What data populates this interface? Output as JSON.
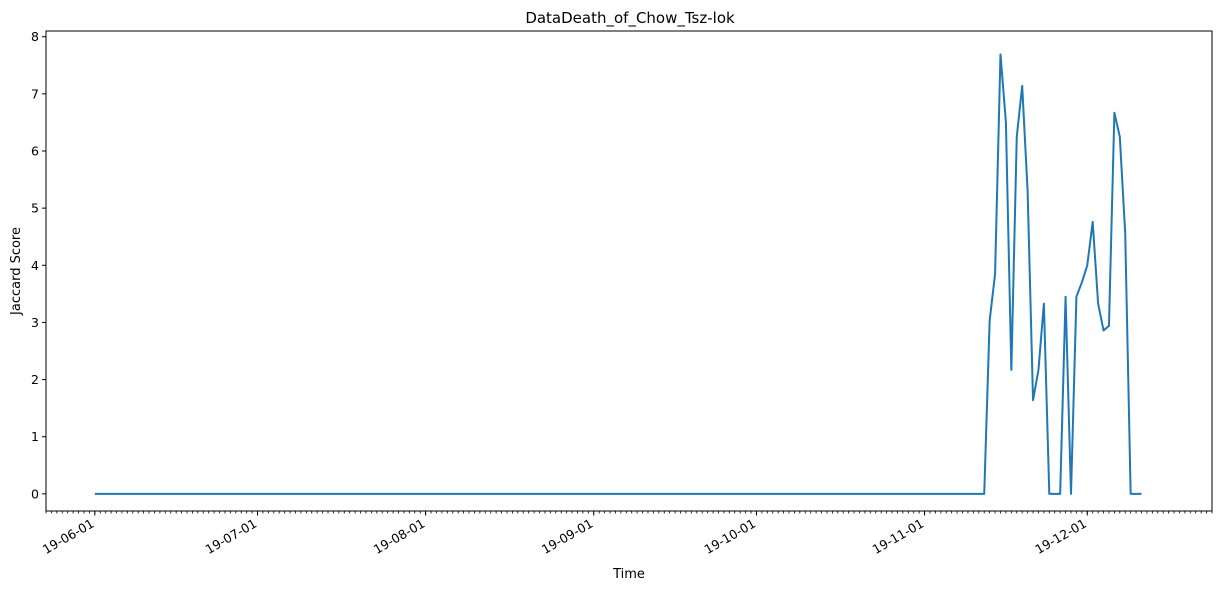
{
  "chart_data": {
    "type": "line",
    "title": "DataDeath_of_Chow_Tsz-lok",
    "xlabel": "Time",
    "ylabel": "Jaccard Score",
    "x_type": "date",
    "xlim": [
      "2019-05-23",
      "2019-12-24"
    ],
    "ylim": [
      -0.3,
      8.1
    ],
    "y_ticks": [
      0,
      1,
      2,
      3,
      4,
      5,
      6,
      7,
      8
    ],
    "x_major_ticks": [
      {
        "date": "2019-06-01",
        "label": "19-06-01"
      },
      {
        "date": "2019-07-01",
        "label": "19-07-01"
      },
      {
        "date": "2019-08-01",
        "label": "19-08-01"
      },
      {
        "date": "2019-09-01",
        "label": "19-09-01"
      },
      {
        "date": "2019-10-01",
        "label": "19-10-01"
      },
      {
        "date": "2019-11-01",
        "label": "19-11-01"
      },
      {
        "date": "2019-12-01",
        "label": "19-12-01"
      }
    ],
    "x_minor_ticks": "daily",
    "grid": false,
    "line_color": "#1f77b4",
    "series": [
      {
        "x": [
          "2019-06-01",
          "2019-11-12",
          "2019-11-13",
          "2019-11-14",
          "2019-11-15",
          "2019-11-16",
          "2019-11-17",
          "2019-11-18",
          "2019-11-19",
          "2019-11-20",
          "2019-11-21",
          "2019-11-22",
          "2019-11-23",
          "2019-11-24",
          "2019-11-25",
          "2019-11-26",
          "2019-11-27",
          "2019-11-28",
          "2019-11-29",
          "2019-11-30",
          "2019-12-01",
          "2019-12-02",
          "2019-12-03",
          "2019-12-04",
          "2019-12-05",
          "2019-12-06",
          "2019-12-07",
          "2019-12-08",
          "2019-12-09",
          "2019-12-10",
          "2019-12-11"
        ],
        "y": [
          0,
          0,
          3.03,
          3.85,
          7.69,
          6.5,
          2.17,
          6.25,
          7.14,
          5.3,
          1.64,
          2.17,
          3.33,
          0,
          0,
          0,
          3.45,
          0,
          3.45,
          3.7,
          4.0,
          4.76,
          3.33,
          2.86,
          2.94,
          6.67,
          6.25,
          4.55,
          0,
          0,
          0
        ]
      }
    ]
  }
}
